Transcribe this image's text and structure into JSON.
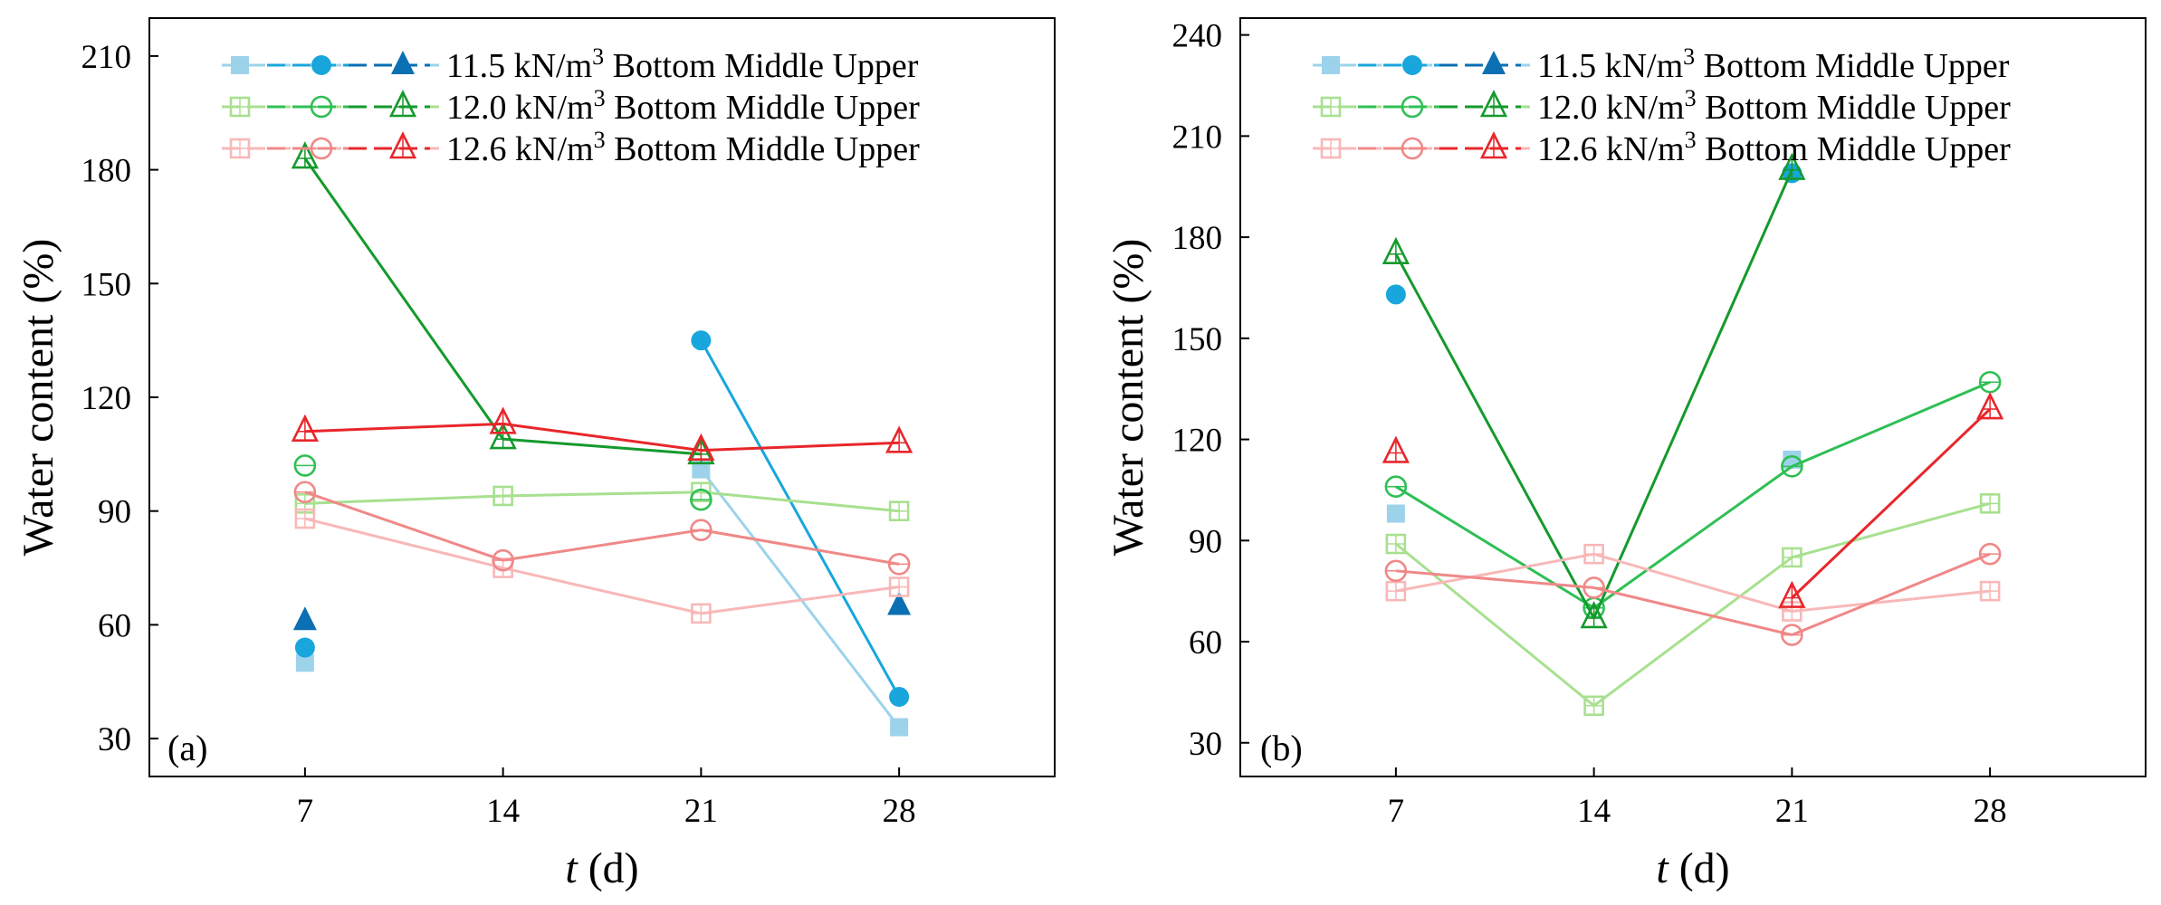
{
  "chart_data": [
    {
      "type": "line",
      "panel_label": "(a)",
      "xlabel_var": "t",
      "xlabel_unit": " (d)",
      "ylabel": "Water content (%)",
      "xlim": [
        1.5,
        33.5
      ],
      "ylim": [
        20,
        220
      ],
      "x_ticks": [
        7,
        14,
        21,
        28
      ],
      "y_ticks": [
        30,
        60,
        90,
        120,
        150,
        180,
        210
      ],
      "grid": false,
      "legend_position": "top",
      "legend": [
        {
          "prefix": "11.5 kN/m",
          "sup": "3",
          "suffix": "  Bottom Middle Upper"
        },
        {
          "prefix": "12.0 kN/m",
          "sup": "3",
          "suffix": " Bottom Middle Upper"
        },
        {
          "prefix": "12.6 kN/m",
          "sup": "3",
          "suffix": " Bottom Middle Upper"
        }
      ],
      "series": [
        {
          "group": 0,
          "layer": "Bottom",
          "color": "#9dd3ea",
          "marker": "square-filled",
          "points": [
            [
              7,
              50
            ],
            [
              21,
              101
            ],
            [
              28,
              33
            ]
          ],
          "segments": [
            [
              1,
              2
            ]
          ]
        },
        {
          "group": 0,
          "layer": "Middle",
          "color": "#18a6dc",
          "marker": "circle-filled",
          "points": [
            [
              7,
              54
            ],
            [
              21,
              135
            ],
            [
              28,
              41
            ]
          ],
          "segments": [
            [
              1,
              2
            ]
          ]
        },
        {
          "group": 0,
          "layer": "Upper",
          "color": "#0b6fb3",
          "marker": "triangle-filled",
          "points": [
            [
              7,
              61
            ],
            [
              28,
              65
            ]
          ],
          "segments": []
        },
        {
          "group": 1,
          "layer": "Bottom",
          "color": "#a8e090",
          "marker": "square-open",
          "points": [
            [
              7,
              92
            ],
            [
              14,
              94
            ],
            [
              21,
              95
            ],
            [
              28,
              90
            ]
          ],
          "segments": [
            [
              0,
              1
            ],
            [
              1,
              2
            ],
            [
              2,
              3
            ]
          ]
        },
        {
          "group": 1,
          "layer": "Middle",
          "color": "#2fbf55",
          "marker": "circle-open",
          "points": [
            [
              7,
              102
            ],
            [
              21,
              93
            ]
          ],
          "segments": []
        },
        {
          "group": 1,
          "layer": "Upper",
          "color": "#149a2c",
          "marker": "triangle-open",
          "points": [
            [
              7,
              183
            ],
            [
              14,
              109
            ],
            [
              21,
              105
            ]
          ],
          "segments": [
            [
              0,
              1
            ],
            [
              1,
              2
            ]
          ]
        },
        {
          "group": 2,
          "layer": "Bottom",
          "color": "#f8b8b8",
          "marker": "square-open",
          "points": [
            [
              7,
              88
            ],
            [
              14,
              75
            ],
            [
              21,
              63
            ],
            [
              28,
              70
            ]
          ],
          "segments": [
            [
              0,
              1
            ],
            [
              1,
              2
            ],
            [
              2,
              3
            ]
          ]
        },
        {
          "group": 2,
          "layer": "Middle",
          "color": "#f08888",
          "marker": "circle-open",
          "points": [
            [
              7,
              95
            ],
            [
              14,
              77
            ],
            [
              21,
              85
            ],
            [
              28,
              76
            ]
          ],
          "segments": [
            [
              0,
              1
            ],
            [
              1,
              2
            ],
            [
              2,
              3
            ]
          ]
        },
        {
          "group": 2,
          "layer": "Upper",
          "color": "#e8262b",
          "marker": "triangle-open",
          "points": [
            [
              7,
              111
            ],
            [
              14,
              113
            ],
            [
              21,
              106
            ],
            [
              28,
              108
            ]
          ],
          "segments": [
            [
              0,
              1
            ],
            [
              1,
              2
            ],
            [
              2,
              3
            ]
          ]
        }
      ]
    },
    {
      "type": "line",
      "panel_label": "(b)",
      "xlabel_var": "t",
      "xlabel_unit": " (d)",
      "ylabel": "Water content (%)",
      "xlim": [
        1.5,
        33.5
      ],
      "ylim": [
        20,
        245
      ],
      "x_ticks": [
        7,
        14,
        21,
        28
      ],
      "y_ticks": [
        30,
        60,
        90,
        120,
        150,
        180,
        210,
        240
      ],
      "grid": false,
      "legend_position": "top",
      "legend": [
        {
          "prefix": "11.5 kN/m",
          "sup": "3",
          "suffix": "  Bottom Middle Upper"
        },
        {
          "prefix": "12.0 kN/m",
          "sup": "3",
          "suffix": " Bottom Middle Upper"
        },
        {
          "prefix": "12.6 kN/m",
          "sup": "3",
          "suffix": " Bottom Middle Upper"
        }
      ],
      "series": [
        {
          "group": 0,
          "layer": "Bottom",
          "color": "#9dd3ea",
          "marker": "square-filled",
          "points": [
            [
              7,
              98
            ],
            [
              21,
              114
            ]
          ],
          "segments": []
        },
        {
          "group": 0,
          "layer": "Middle",
          "color": "#18a6dc",
          "marker": "circle-filled",
          "points": [
            [
              7,
              163
            ],
            [
              21,
              199
            ]
          ],
          "segments": []
        },
        {
          "group": 0,
          "layer": "Upper",
          "color": "#0b6fb3",
          "marker": "triangle-filled",
          "points": [],
          "segments": []
        },
        {
          "group": 1,
          "layer": "Bottom",
          "color": "#a8e090",
          "marker": "square-open",
          "points": [
            [
              7,
              89
            ],
            [
              14,
              41
            ],
            [
              21,
              85
            ],
            [
              28,
              101
            ]
          ],
          "segments": [
            [
              0,
              1
            ],
            [
              1,
              2
            ],
            [
              2,
              3
            ]
          ]
        },
        {
          "group": 1,
          "layer": "Middle",
          "color": "#2fbf55",
          "marker": "circle-open",
          "points": [
            [
              7,
              106
            ],
            [
              14,
              70
            ],
            [
              21,
              112
            ],
            [
              28,
              137
            ]
          ],
          "segments": [
            [
              0,
              1
            ],
            [
              1,
              2
            ],
            [
              2,
              3
            ]
          ]
        },
        {
          "group": 1,
          "layer": "Upper",
          "color": "#149a2c",
          "marker": "triangle-open",
          "points": [
            [
              7,
              175
            ],
            [
              14,
              67
            ],
            [
              21,
              200
            ]
          ],
          "segments": [
            [
              0,
              1
            ],
            [
              1,
              2
            ]
          ]
        },
        {
          "group": 2,
          "layer": "Bottom",
          "color": "#f8b8b8",
          "marker": "square-open",
          "points": [
            [
              7,
              75
            ],
            [
              14,
              86
            ],
            [
              21,
              69
            ],
            [
              28,
              75
            ]
          ],
          "segments": [
            [
              0,
              1
            ],
            [
              1,
              2
            ],
            [
              2,
              3
            ]
          ]
        },
        {
          "group": 2,
          "layer": "Middle",
          "color": "#f08888",
          "marker": "circle-open",
          "points": [
            [
              7,
              81
            ],
            [
              14,
              76
            ],
            [
              21,
              62
            ],
            [
              28,
              86
            ]
          ],
          "segments": [
            [
              0,
              1
            ],
            [
              1,
              2
            ],
            [
              2,
              3
            ]
          ]
        },
        {
          "group": 2,
          "layer": "Upper",
          "color": "#e8262b",
          "marker": "triangle-open",
          "points": [
            [
              7,
              116
            ],
            [
              21,
              73
            ],
            [
              28,
              129
            ]
          ],
          "segments": [
            [
              1,
              2
            ]
          ]
        }
      ]
    }
  ]
}
